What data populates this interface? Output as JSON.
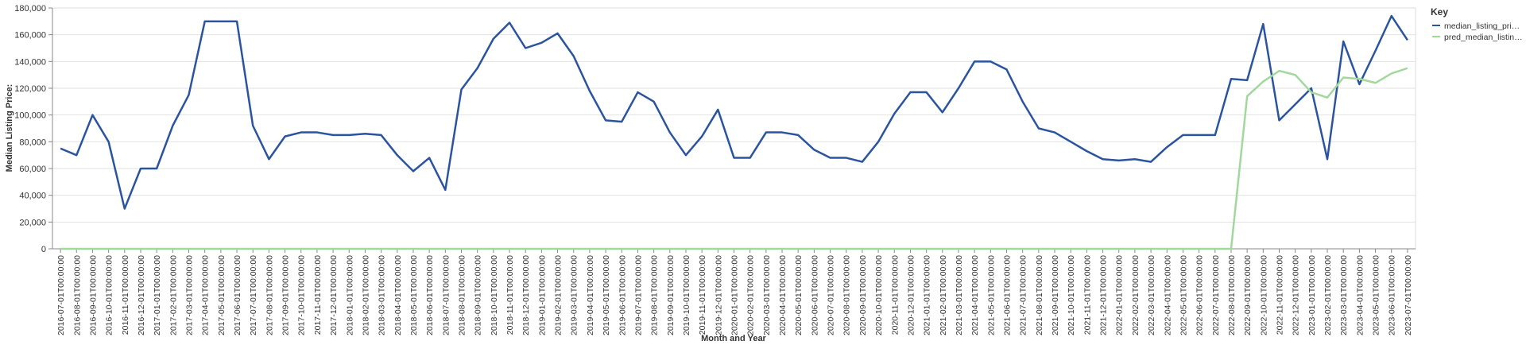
{
  "chart_data": {
    "type": "line",
    "x_label": "Month and Year",
    "y_label": "Median Listing Price:",
    "legend_title": "Key",
    "legend_position": "right",
    "grid": true,
    "categories": [
      "2016-07-01T00:00:00",
      "2016-08-01T00:00:00",
      "2016-09-01T00:00:00",
      "2016-10-01T00:00:00",
      "2016-11-01T00:00:00",
      "2016-12-01T00:00:00",
      "2017-01-01T00:00:00",
      "2017-02-01T00:00:00",
      "2017-03-01T00:00:00",
      "2017-04-01T00:00:00",
      "2017-05-01T00:00:00",
      "2017-06-01T00:00:00",
      "2017-07-01T00:00:00",
      "2017-08-01T00:00:00",
      "2017-09-01T00:00:00",
      "2017-10-01T00:00:00",
      "2017-11-01T00:00:00",
      "2017-12-01T00:00:00",
      "2018-01-01T00:00:00",
      "2018-02-01T00:00:00",
      "2018-03-01T00:00:00",
      "2018-04-01T00:00:00",
      "2018-05-01T00:00:00",
      "2018-06-01T00:00:00",
      "2018-07-01T00:00:00",
      "2018-08-01T00:00:00",
      "2018-09-01T00:00:00",
      "2018-10-01T00:00:00",
      "2018-11-01T00:00:00",
      "2018-12-01T00:00:00",
      "2019-01-01T00:00:00",
      "2019-02-01T00:00:00",
      "2019-03-01T00:00:00",
      "2019-04-01T00:00:00",
      "2019-05-01T00:00:00",
      "2019-06-01T00:00:00",
      "2019-07-01T00:00:00",
      "2019-08-01T00:00:00",
      "2019-09-01T00:00:00",
      "2019-10-01T00:00:00",
      "2019-11-01T00:00:00",
      "2019-12-01T00:00:00",
      "2020-01-01T00:00:00",
      "2020-02-01T00:00:00",
      "2020-03-01T00:00:00",
      "2020-04-01T00:00:00",
      "2020-05-01T00:00:00",
      "2020-06-01T00:00:00",
      "2020-07-01T00:00:00",
      "2020-08-01T00:00:00",
      "2020-09-01T00:00:00",
      "2020-10-01T00:00:00",
      "2020-11-01T00:00:00",
      "2020-12-01T00:00:00",
      "2021-01-01T00:00:00",
      "2021-02-01T00:00:00",
      "2021-03-01T00:00:00",
      "2021-04-01T00:00:00",
      "2021-05-01T00:00:00",
      "2021-06-01T00:00:00",
      "2021-07-01T00:00:00",
      "2021-08-01T00:00:00",
      "2021-09-01T00:00:00",
      "2021-10-01T00:00:00",
      "2021-11-01T00:00:00",
      "2021-12-01T00:00:00",
      "2022-01-01T00:00:00",
      "2022-02-01T00:00:00",
      "2022-03-01T00:00:00",
      "2022-04-01T00:00:00",
      "2022-05-01T00:00:00",
      "2022-06-01T00:00:00",
      "2022-07-01T00:00:00",
      "2022-08-01T00:00:00",
      "2022-09-01T00:00:00",
      "2022-10-01T00:00:00",
      "2022-11-01T00:00:00",
      "2022-12-01T00:00:00",
      "2023-01-01T00:00:00",
      "2023-02-01T00:00:00",
      "2023-03-01T00:00:00",
      "2023-04-01T00:00:00",
      "2023-05-01T00:00:00",
      "2023-06-01T00:00:00",
      "2023-07-01T00:00:00"
    ],
    "series": [
      {
        "name": "median_listing_pri…",
        "color": "#2b54a0",
        "values": [
          75000,
          70000,
          100000,
          80000,
          30000,
          60000,
          60000,
          92000,
          115000,
          170000,
          170000,
          170000,
          92000,
          67000,
          84000,
          87000,
          87000,
          85000,
          85000,
          86000,
          85000,
          70000,
          58000,
          68000,
          44000,
          119000,
          135000,
          157000,
          169000,
          150000,
          154000,
          161000,
          144000,
          118000,
          96000,
          95000,
          117000,
          110000,
          87000,
          70000,
          84000,
          104000,
          68000,
          68000,
          87000,
          87000,
          85000,
          74000,
          68000,
          68000,
          65000,
          80000,
          101000,
          117000,
          117000,
          102000,
          120000,
          140000,
          140000,
          134000,
          110000,
          90000,
          87000,
          80000,
          73000,
          67000,
          66000,
          67000,
          65000,
          76000,
          85000,
          85000,
          85000,
          127000,
          126000,
          168000,
          96000,
          108000,
          120000,
          67000,
          155000,
          123000,
          148000,
          174000,
          156000
        ]
      },
      {
        "name": "pred_median_listin…",
        "color": "#a1d99b",
        "values": [
          0,
          0,
          0,
          0,
          0,
          0,
          0,
          0,
          0,
          0,
          0,
          0,
          0,
          0,
          0,
          0,
          0,
          0,
          0,
          0,
          0,
          0,
          0,
          0,
          0,
          0,
          0,
          0,
          0,
          0,
          0,
          0,
          0,
          0,
          0,
          0,
          0,
          0,
          0,
          0,
          0,
          0,
          0,
          0,
          0,
          0,
          0,
          0,
          0,
          0,
          0,
          0,
          0,
          0,
          0,
          0,
          0,
          0,
          0,
          0,
          0,
          0,
          0,
          0,
          0,
          0,
          0,
          0,
          0,
          0,
          0,
          0,
          0,
          0,
          114000,
          125000,
          133000,
          130000,
          117000,
          113000,
          128000,
          127000,
          124000,
          131000,
          135000
        ]
      }
    ],
    "ylim": [
      0,
      180000
    ],
    "yticks": [
      0,
      {
        "value": 20000,
        "label": "20,000"
      },
      {
        "value": 40000,
        "label": "40,000"
      },
      {
        "value": 60000,
        "label": "60,000"
      },
      {
        "value": 80000,
        "label": "80,000"
      },
      {
        "value": 100000,
        "label": "100,000"
      },
      {
        "value": 120000,
        "label": "120,000"
      },
      {
        "value": 140000,
        "label": "140,000"
      },
      {
        "value": 160000,
        "label": "160,000"
      },
      {
        "value": 180000,
        "label": "180,000"
      }
    ]
  }
}
